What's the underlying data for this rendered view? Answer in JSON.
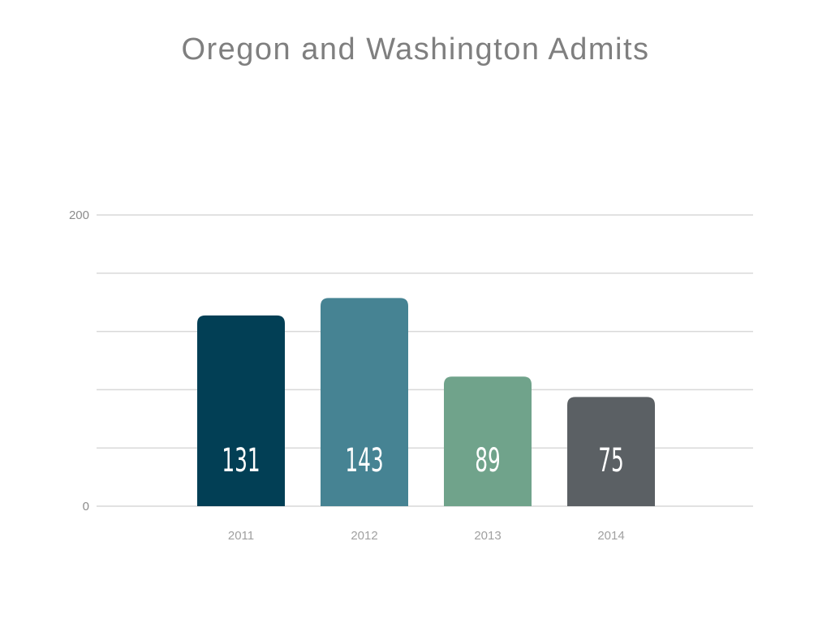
{
  "chart_data": {
    "type": "bar",
    "title": "Oregon and Washington Admits",
    "xlabel": "",
    "ylabel": "",
    "categories": [
      "2011",
      "2012",
      "2013",
      "2014"
    ],
    "values": [
      131,
      143,
      89,
      75
    ],
    "value_labels": [
      "131",
      "143",
      "89",
      "75"
    ],
    "bar_colors": [
      "#023f55",
      "#468393",
      "#70a38b",
      "#5b6064"
    ],
    "ylim": [
      0,
      200
    ],
    "yticks": [
      0,
      200
    ],
    "ytick_labels": [
      "0",
      "200"
    ],
    "gridlines": [
      0,
      40,
      80,
      120,
      160,
      200
    ],
    "grid": true,
    "legend": "none",
    "colors": {
      "grid": "#d9d9d9",
      "title": "#7f7f7f",
      "tick": "#8c8c8c",
      "category": "#a0a0a0",
      "value_label": "#ffffff"
    }
  }
}
